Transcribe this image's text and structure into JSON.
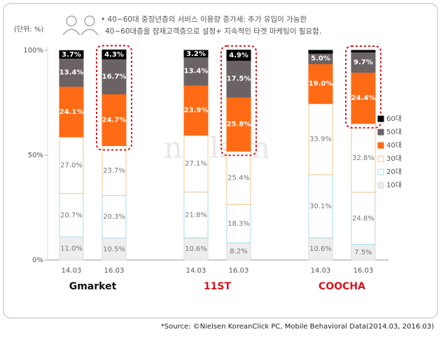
{
  "chart_data": {
    "type": "stacked_bar",
    "unit_label": "(단위: %)",
    "annotation": [
      "• 40~60대 중장년층의 서비스 이용량 증가세: 추가 유입이 가능한",
      "40~60대층을 잠재고객층으로 설정+ 지속적인 타겟 마케팅이 필요함."
    ],
    "watermark": "nielsen",
    "source": "*Source: ©Nielsen KoreanClick PC, Mobile Behavioral Data(2014.03, 2016.03)",
    "groups": [
      "Gmarket",
      "11ST",
      "COOCHA"
    ],
    "categories": [
      "14.03",
      "16.03",
      "14.03",
      "16.03",
      "14.03",
      "16.03"
    ],
    "ylim": [
      0,
      100
    ],
    "yticks": [
      {
        "value": 0,
        "label": "0%"
      },
      {
        "value": 50,
        "label": "50%"
      },
      {
        "value": 100,
        "label": "100%"
      }
    ],
    "series": [
      {
        "name": "10대",
        "color": "#eeeeee",
        "border": "#d8d8d8",
        "values": [
          11.0,
          10.5,
          10.6,
          8.2,
          10.6,
          7.5
        ],
        "value_labels": [
          "11.0%",
          "10.5%",
          "10.6%",
          "8.2%",
          "10.6%",
          "7.5%"
        ]
      },
      {
        "name": "20대",
        "color": "#ffffff",
        "border": "#a6dcf2",
        "values": [
          20.7,
          20.3,
          21.8,
          18.3,
          30.1,
          24.8
        ],
        "value_labels": [
          "20.7%",
          "20.3%",
          "21.8%",
          "18.3%",
          "30.1%",
          "24.8%"
        ]
      },
      {
        "name": "30대",
        "color": "#ffffff",
        "border": "#f6c48c",
        "values": [
          27.0,
          23.7,
          27.1,
          25.4,
          33.9,
          32.8
        ],
        "value_labels": [
          "27.0%",
          "23.7%",
          "27.1%",
          "25.4%",
          "33.9%",
          "32.8%"
        ]
      },
      {
        "name": "40대",
        "color": "#ff6a14",
        "border": "#ff6a14",
        "values": [
          24.1,
          24.7,
          23.9,
          25.8,
          19.0,
          24.4
        ],
        "value_labels": [
          "24.1%",
          "24.7%",
          "23.9%",
          "25.8%",
          "19.0%",
          "24.4%"
        ]
      },
      {
        "name": "50대",
        "color": "#6b6264",
        "border": "#6b6264",
        "values": [
          13.4,
          16.7,
          13.4,
          17.5,
          5.0,
          9.7
        ],
        "value_labels": [
          "13.4%",
          "16.7%",
          "13.4%",
          "17.5%",
          "5.0%",
          "9.7%"
        ]
      },
      {
        "name": "60대",
        "color": "#000000",
        "border": "#000000",
        "values": [
          3.7,
          4.3,
          3.2,
          4.9,
          1.4,
          0.8
        ],
        "value_labels": [
          "3.7%",
          "4.3%",
          "3.2%",
          "4.9%",
          null,
          null
        ]
      }
    ]
  }
}
